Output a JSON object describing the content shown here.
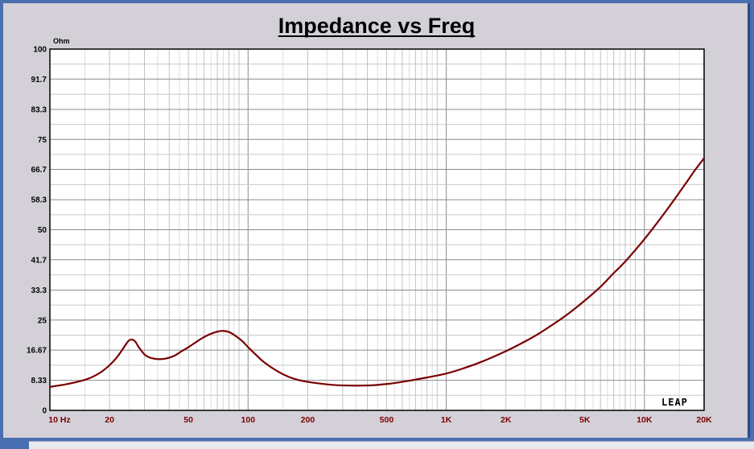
{
  "chart_data": {
    "type": "line",
    "title": "Impedance vs Freq",
    "ylabel": "Ohm",
    "xlabel": "",
    "x_scale": "log",
    "xlim": [
      10,
      20000
    ],
    "ylim": [
      0,
      100
    ],
    "grid": true,
    "yticks": [
      0,
      8.33,
      16.67,
      25,
      33.3,
      41.7,
      50,
      58.3,
      66.7,
      75,
      83.3,
      91.7,
      100
    ],
    "ytick_labels": [
      "0",
      "8.33",
      "16.67",
      "25",
      "33.3",
      "41.7",
      "50",
      "58.3",
      "66.7",
      "75",
      "83.3",
      "91.7",
      "100"
    ],
    "xticks": [
      10,
      20,
      50,
      100,
      200,
      500,
      1000,
      2000,
      5000,
      10000,
      20000
    ],
    "xtick_labels": [
      "10  Hz",
      "20",
      "50",
      "100",
      "200",
      "500",
      "1K",
      "2K",
      "5K",
      "10K",
      "20K"
    ],
    "series": [
      {
        "color": "#7a0000",
        "x": [
          10,
          12,
          14,
          16,
          18,
          20,
          22,
          24,
          25,
          26,
          27,
          28,
          30,
          32,
          35,
          38,
          42,
          46,
          50,
          55,
          60,
          65,
          70,
          75,
          80,
          85,
          90,
          95,
          100,
          110,
          120,
          140,
          160,
          180,
          200,
          250,
          300,
          400,
          500,
          600,
          800,
          1000,
          1200,
          1500,
          2000,
          2500,
          3000,
          4000,
          5000,
          6000,
          7000,
          8000,
          10000,
          12000,
          14000,
          16000,
          18000,
          20000
        ],
        "y": [
          6.5,
          7.2,
          8.0,
          9.0,
          10.5,
          12.5,
          15.0,
          18.0,
          19.3,
          19.6,
          19.0,
          17.6,
          15.5,
          14.6,
          14.2,
          14.3,
          15.0,
          16.3,
          17.5,
          19.0,
          20.3,
          21.2,
          21.8,
          22.0,
          21.7,
          20.9,
          19.9,
          18.8,
          17.5,
          15.3,
          13.4,
          10.9,
          9.3,
          8.4,
          7.9,
          7.2,
          6.9,
          6.9,
          7.3,
          7.9,
          9.1,
          10.2,
          11.5,
          13.4,
          16.4,
          19.1,
          21.6,
          26.2,
          30.4,
          34.2,
          38.0,
          41.2,
          47.4,
          53.0,
          58.0,
          62.5,
          66.5,
          69.8
        ]
      }
    ],
    "brand": "LEAP"
  }
}
